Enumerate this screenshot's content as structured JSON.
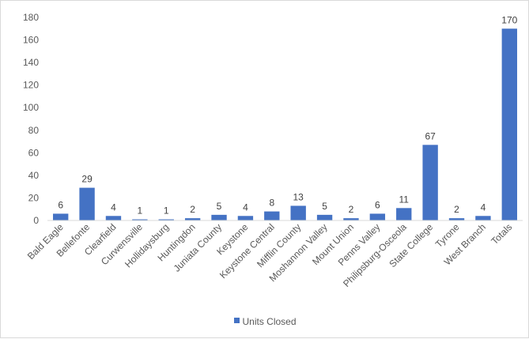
{
  "chart_data": {
    "type": "bar",
    "title": "",
    "xlabel": "",
    "ylabel": "",
    "ylim": [
      0,
      180
    ],
    "yticks": [
      0,
      20,
      40,
      60,
      80,
      100,
      120,
      140,
      160,
      180
    ],
    "grid": false,
    "legend_position": "bottom",
    "categories": [
      "Bald Eagle",
      "Bellefonte",
      "Clearfield",
      "Curwensville",
      "Hollidaysburg",
      "Huntingdon",
      "Juniata County",
      "Keystone",
      "Keystone Central",
      "Mifflin County",
      "Moshannon Valley",
      "Mount Union",
      "Penns Valley",
      "Philipsburg-Osceola",
      "State College",
      "Tyrone",
      "West Branch",
      "Totals"
    ],
    "series": [
      {
        "name": "Units Closed",
        "color": "#4472c4",
        "values": [
          6,
          29,
          4,
          1,
          1,
          2,
          5,
          4,
          8,
          13,
          5,
          2,
          6,
          11,
          67,
          2,
          4,
          170
        ]
      }
    ]
  }
}
